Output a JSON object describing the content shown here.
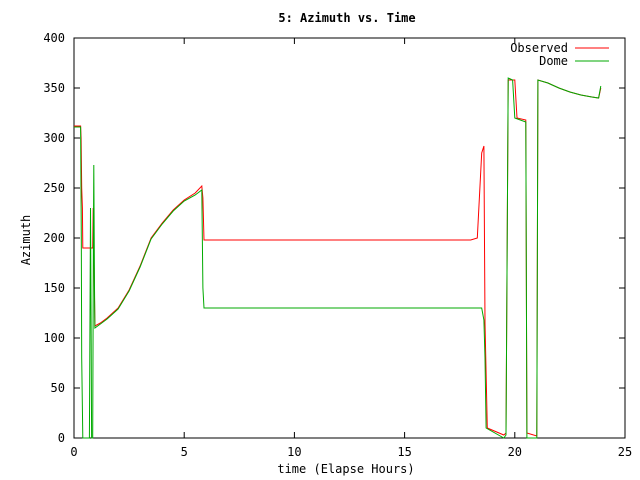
{
  "chart_data": {
    "type": "line",
    "title": "5: Azimuth vs. Time",
    "xlabel": "time (Elapse Hours)",
    "ylabel": "Azimuth",
    "xlim": [
      0,
      25
    ],
    "ylim": [
      0,
      400
    ],
    "xticks": [
      0,
      5,
      10,
      15,
      20,
      25
    ],
    "yticks": [
      0,
      50,
      100,
      150,
      200,
      250,
      300,
      350,
      400
    ],
    "grid": false,
    "legend_position": "top-right",
    "series": [
      {
        "name": "Observed",
        "color": "#ff0000",
        "points": [
          [
            0.0,
            312
          ],
          [
            0.3,
            312
          ],
          [
            0.32,
            300
          ],
          [
            0.35,
            250
          ],
          [
            0.38,
            230
          ],
          [
            0.4,
            190
          ],
          [
            0.85,
            190
          ],
          [
            0.87,
            230
          ],
          [
            0.9,
            190
          ],
          [
            0.95,
            112
          ],
          [
            1.2,
            115
          ],
          [
            1.5,
            120
          ],
          [
            2.0,
            130
          ],
          [
            2.5,
            148
          ],
          [
            3.0,
            172
          ],
          [
            3.5,
            200
          ],
          [
            4.0,
            215
          ],
          [
            4.5,
            228
          ],
          [
            5.0,
            238
          ],
          [
            5.5,
            245
          ],
          [
            5.8,
            252
          ],
          [
            5.85,
            240
          ],
          [
            5.9,
            198
          ],
          [
            10.0,
            198
          ],
          [
            15.0,
            198
          ],
          [
            17.8,
            198
          ],
          [
            18.0,
            198
          ],
          [
            18.3,
            200
          ],
          [
            18.5,
            285
          ],
          [
            18.6,
            292
          ],
          [
            18.65,
            115
          ],
          [
            18.75,
            10
          ],
          [
            19.5,
            3
          ],
          [
            19.6,
            5
          ],
          [
            19.7,
            358
          ],
          [
            20.0,
            358
          ],
          [
            20.1,
            320
          ],
          [
            20.5,
            318
          ],
          [
            20.55,
            5
          ],
          [
            21.0,
            2
          ],
          [
            21.05,
            358
          ],
          [
            21.5,
            355
          ],
          [
            22.0,
            350
          ],
          [
            22.5,
            346
          ],
          [
            23.0,
            343
          ],
          [
            23.5,
            341
          ],
          [
            23.8,
            340
          ],
          [
            23.9,
            350
          ]
        ]
      },
      {
        "name": "Dome",
        "color": "#00aa00",
        "points": [
          [
            0.0,
            311
          ],
          [
            0.3,
            311
          ],
          [
            0.33,
            200
          ],
          [
            0.35,
            80
          ],
          [
            0.4,
            0
          ],
          [
            0.7,
            0
          ],
          [
            0.75,
            230
          ],
          [
            0.78,
            95
          ],
          [
            0.8,
            0
          ],
          [
            0.85,
            0
          ],
          [
            0.88,
            200
          ],
          [
            0.9,
            273
          ],
          [
            0.93,
            150
          ],
          [
            0.95,
            110
          ],
          [
            1.2,
            114
          ],
          [
            1.5,
            119
          ],
          [
            2.0,
            129
          ],
          [
            2.5,
            147
          ],
          [
            3.0,
            171
          ],
          [
            3.5,
            199
          ],
          [
            4.0,
            214
          ],
          [
            4.5,
            227
          ],
          [
            5.0,
            237
          ],
          [
            5.5,
            243
          ],
          [
            5.8,
            248
          ],
          [
            5.85,
            150
          ],
          [
            5.9,
            130
          ],
          [
            10.0,
            130
          ],
          [
            15.0,
            130
          ],
          [
            18.5,
            130
          ],
          [
            18.6,
            118
          ],
          [
            18.65,
            80
          ],
          [
            18.7,
            10
          ],
          [
            19.5,
            0
          ],
          [
            19.6,
            3
          ],
          [
            19.7,
            360
          ],
          [
            19.9,
            358
          ],
          [
            20.0,
            320
          ],
          [
            20.5,
            316
          ],
          [
            20.55,
            0
          ],
          [
            21.0,
            0
          ],
          [
            21.05,
            358
          ],
          [
            21.5,
            355
          ],
          [
            22.0,
            350
          ],
          [
            22.5,
            346
          ],
          [
            23.0,
            343
          ],
          [
            23.5,
            341
          ],
          [
            23.8,
            340
          ],
          [
            23.9,
            352
          ]
        ]
      }
    ]
  }
}
